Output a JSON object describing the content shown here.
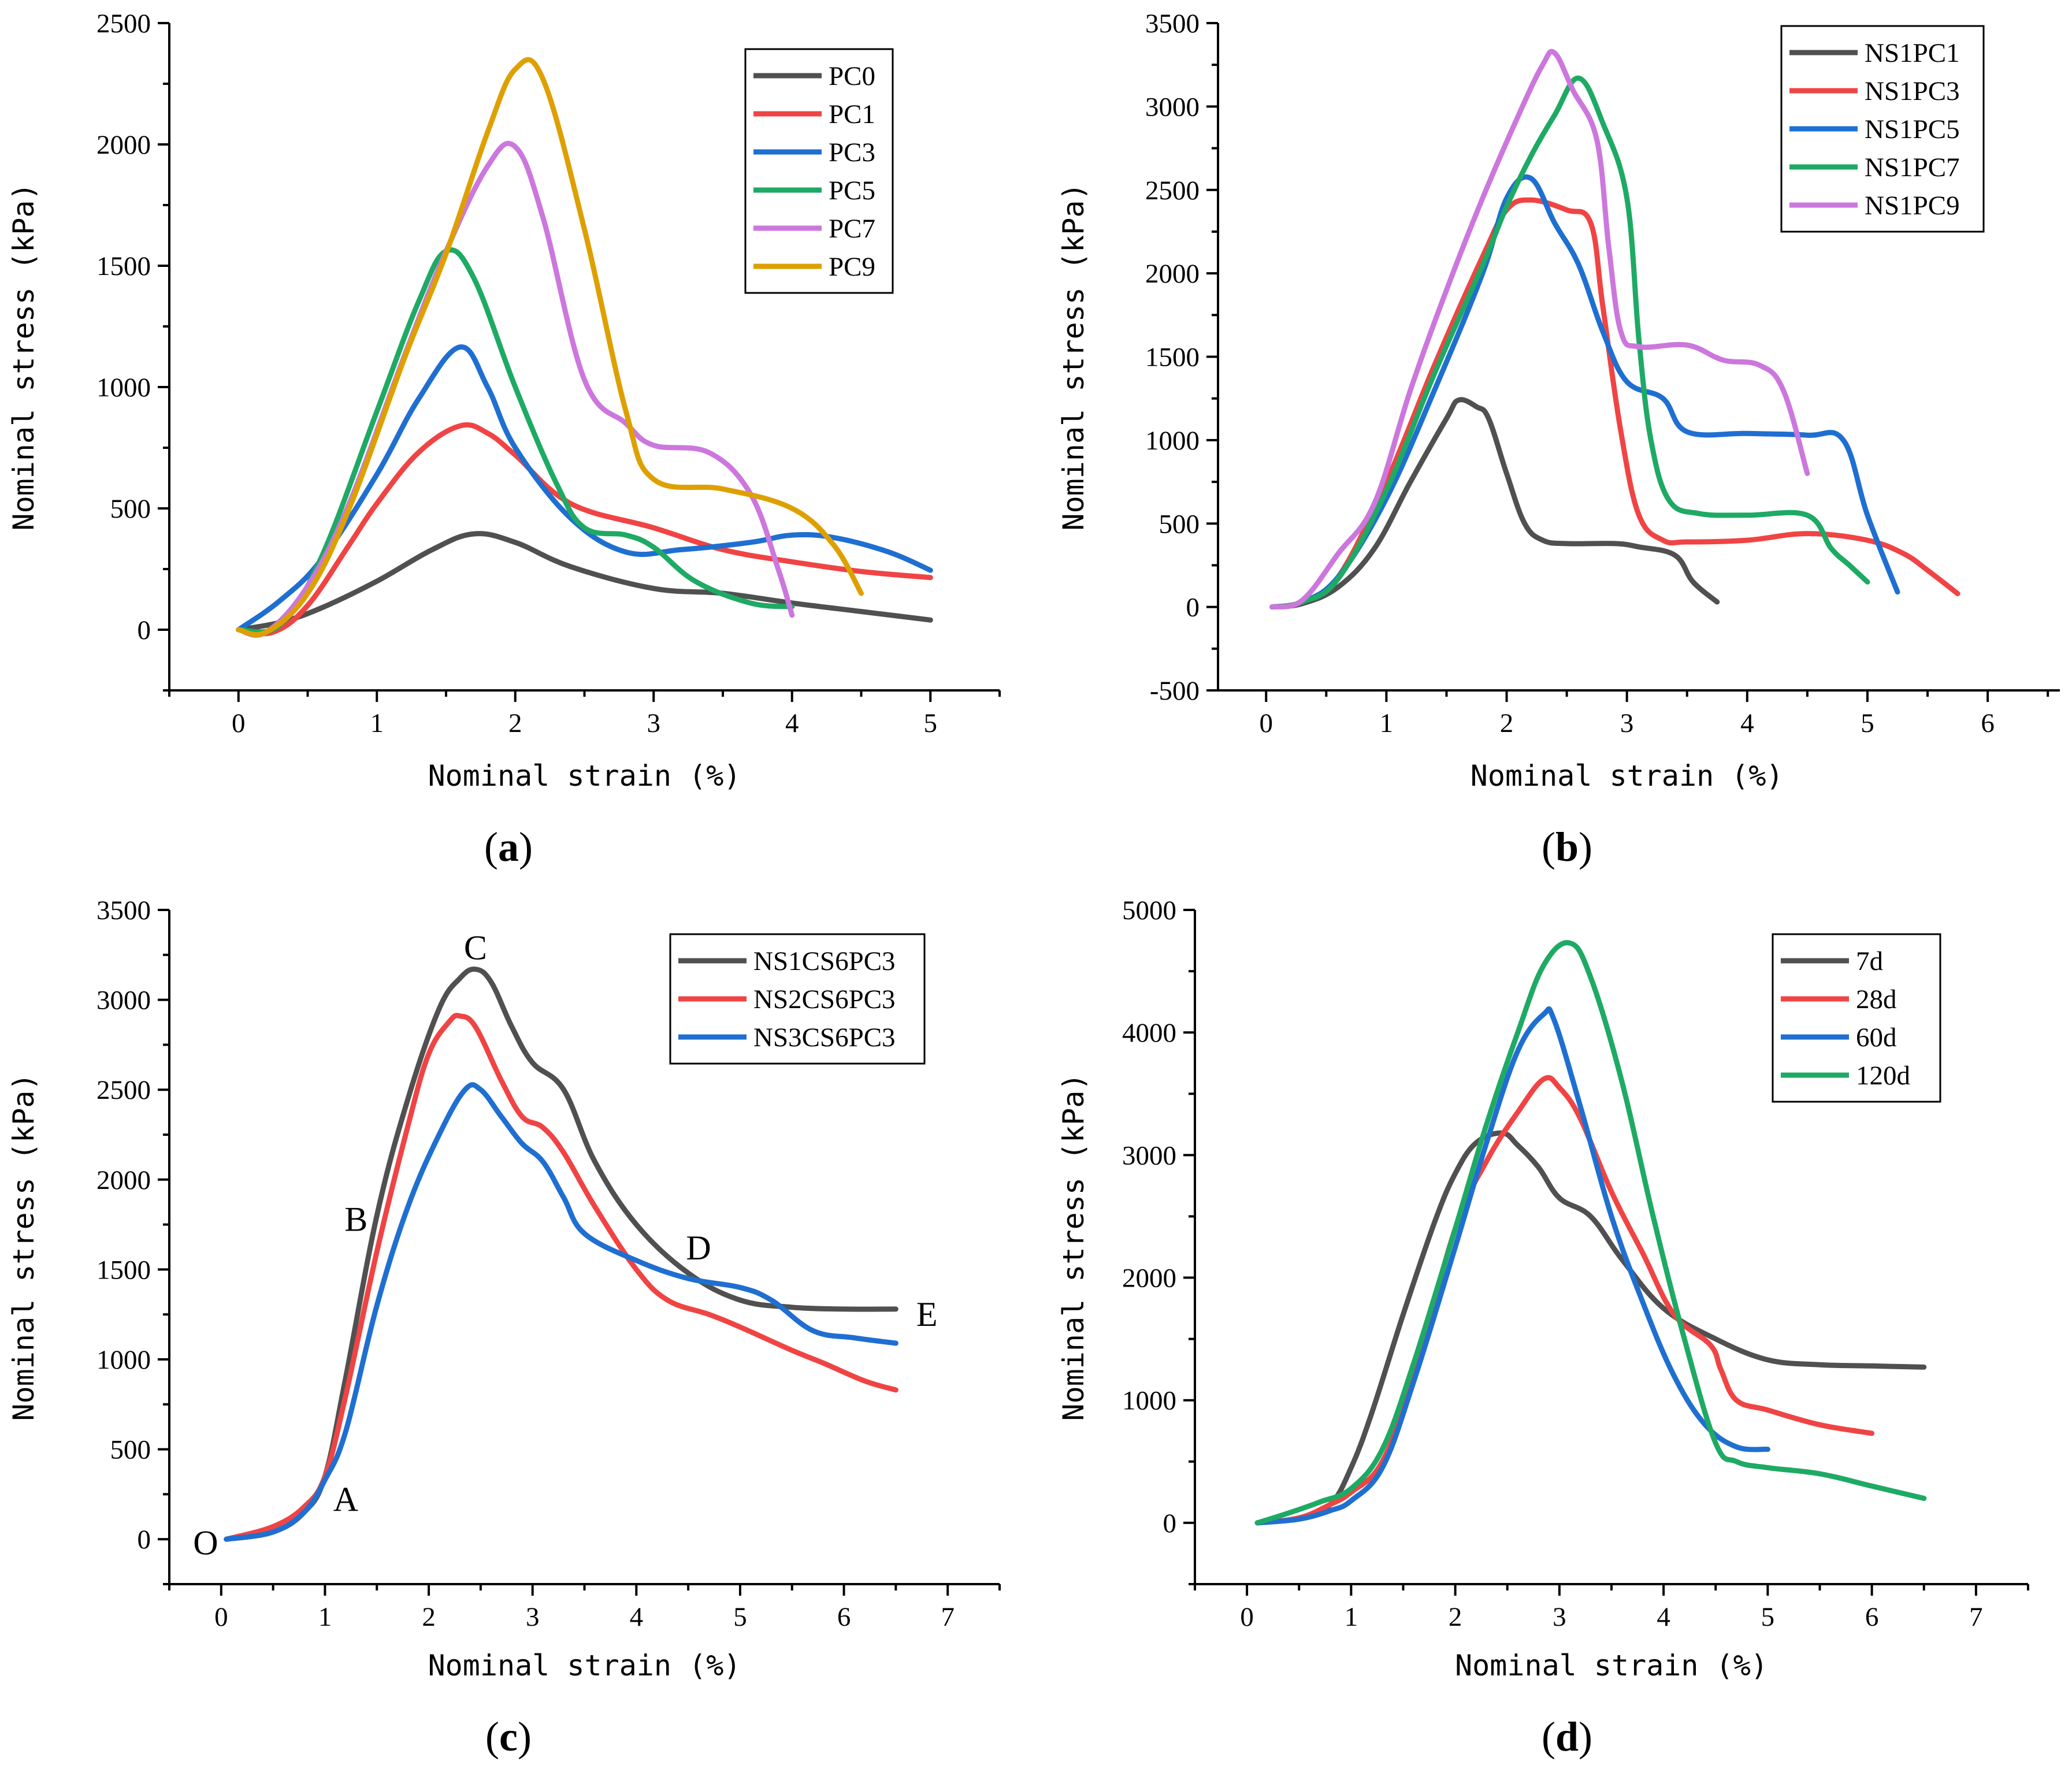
{
  "colors": {
    "gray": "#505050",
    "red": "#f04444",
    "blue": "#1f6fd1",
    "green": "#1eaa64",
    "purple": "#cc77dd",
    "gold": "#dea000"
  },
  "chart_data": [
    {
      "type": "line",
      "caption": "(a)",
      "caption_letter": "a",
      "xlabel": "Nominal strain (%)",
      "ylabel": "Nominal stress (kPa)",
      "xlim": [
        -0.5,
        5.5
      ],
      "ylim": [
        -250,
        2500
      ],
      "xticks": [
        0,
        1,
        2,
        3,
        4,
        5
      ],
      "yticks": [
        0,
        500,
        1000,
        1500,
        2000,
        2500
      ],
      "legend_position": "top-right",
      "series": [
        {
          "name": "PC0",
          "color": "#505050",
          "x": [
            0,
            0.3,
            0.6,
            1.0,
            1.4,
            1.7,
            2.0,
            2.4,
            3.0,
            3.5,
            4.0,
            4.5,
            5.0
          ],
          "y": [
            0,
            30,
            90,
            200,
            330,
            395,
            360,
            260,
            170,
            150,
            110,
            75,
            40
          ]
        },
        {
          "name": "PC1",
          "color": "#f04444",
          "x": [
            0,
            0.25,
            0.5,
            0.8,
            1.0,
            1.3,
            1.6,
            1.8,
            2.0,
            2.4,
            3.0,
            3.5,
            4.0,
            4.5,
            5.0
          ],
          "y": [
            0,
            -10,
            100,
            350,
            520,
            730,
            840,
            810,
            720,
            520,
            420,
            330,
            280,
            240,
            215
          ]
        },
        {
          "name": "PC3",
          "color": "#1f6fd1",
          "x": [
            0,
            0.3,
            0.6,
            1.0,
            1.3,
            1.6,
            1.8,
            2.0,
            2.4,
            2.8,
            3.2,
            3.7,
            4.0,
            4.3,
            4.7,
            5.0
          ],
          "y": [
            0,
            120,
            290,
            640,
            950,
            1165,
            1000,
            750,
            460,
            320,
            330,
            360,
            390,
            380,
            320,
            245
          ]
        },
        {
          "name": "PC5",
          "color": "#1eaa64",
          "x": [
            0,
            0.3,
            0.6,
            1.0,
            1.3,
            1.5,
            1.7,
            2.0,
            2.3,
            2.5,
            2.8,
            3.0,
            3.3,
            3.7,
            4.0
          ],
          "y": [
            0,
            20,
            300,
            900,
            1350,
            1560,
            1450,
            1000,
            600,
            420,
            390,
            340,
            200,
            110,
            95
          ]
        },
        {
          "name": "PC7",
          "color": "#cc77dd",
          "x": [
            0,
            0.2,
            0.5,
            0.8,
            1.2,
            1.5,
            1.8,
            2.0,
            2.2,
            2.5,
            2.8,
            3.0,
            3.4,
            3.7,
            3.9,
            4.0
          ],
          "y": [
            0,
            -10,
            180,
            520,
            1130,
            1560,
            1910,
            1990,
            1700,
            1030,
            850,
            760,
            730,
            560,
            250,
            60
          ]
        },
        {
          "name": "PC9",
          "color": "#dea000",
          "x": [
            0,
            0.2,
            0.5,
            0.8,
            1.2,
            1.5,
            1.8,
            2.0,
            2.2,
            2.5,
            2.8,
            3.0,
            3.5,
            4.0,
            4.3,
            4.5
          ],
          "y": [
            0,
            -10,
            150,
            500,
            1120,
            1550,
            2050,
            2310,
            2270,
            1650,
            900,
            620,
            580,
            500,
            350,
            150
          ]
        }
      ]
    },
    {
      "type": "line",
      "caption": "(b)",
      "caption_letter": "b",
      "xlabel": "Nominal strain (%)",
      "ylabel": "Nominal stress (kPa)",
      "xlim": [
        -0.4,
        6.6
      ],
      "ylim": [
        -500,
        3500
      ],
      "xticks": [
        0,
        1,
        2,
        3,
        4,
        5,
        6
      ],
      "yticks": [
        -500,
        0,
        500,
        1000,
        1500,
        2000,
        2500,
        3000,
        3500
      ],
      "legend_position": "top-right",
      "series": [
        {
          "name": "NS1PC1",
          "color": "#505050",
          "x": [
            0.05,
            0.3,
            0.6,
            0.9,
            1.2,
            1.5,
            1.6,
            1.75,
            1.85,
            2.0,
            2.15,
            2.3,
            2.5,
            2.9,
            3.1,
            3.4,
            3.55,
            3.75
          ],
          "y": [
            0,
            20,
            120,
            350,
            750,
            1130,
            1240,
            1200,
            1130,
            800,
            500,
            400,
            380,
            380,
            360,
            310,
            150,
            30
          ]
        },
        {
          "name": "NS1PC3",
          "color": "#f04444",
          "x": [
            0.05,
            0.3,
            0.6,
            1.0,
            1.4,
            1.8,
            2.0,
            2.2,
            2.5,
            2.7,
            2.8,
            2.95,
            3.1,
            3.3,
            3.5,
            4.0,
            4.5,
            5.0,
            5.3,
            5.5,
            5.75
          ],
          "y": [
            0,
            30,
            180,
            750,
            1450,
            2100,
            2380,
            2440,
            2380,
            2300,
            1800,
            1050,
            550,
            400,
            390,
            400,
            440,
            400,
            320,
            220,
            80
          ]
        },
        {
          "name": "NS1PC5",
          "color": "#1f6fd1",
          "x": [
            0.05,
            0.3,
            0.6,
            1.0,
            1.4,
            1.8,
            2.0,
            2.2,
            2.4,
            2.6,
            2.8,
            3.0,
            3.3,
            3.5,
            4.0,
            4.5,
            4.8,
            5.0,
            5.25
          ],
          "y": [
            0,
            30,
            180,
            650,
            1300,
            2000,
            2450,
            2570,
            2300,
            2050,
            1650,
            1350,
            1250,
            1050,
            1040,
            1030,
            1000,
            550,
            90
          ]
        },
        {
          "name": "NS1PC7",
          "color": "#1eaa64",
          "x": [
            0.05,
            0.3,
            0.6,
            1.0,
            1.4,
            1.8,
            2.0,
            2.2,
            2.4,
            2.6,
            2.8,
            3.0,
            3.1,
            3.2,
            3.35,
            3.6,
            4.0,
            4.5,
            4.7,
            4.85,
            5.0
          ],
          "y": [
            0,
            30,
            170,
            700,
            1400,
            2050,
            2400,
            2700,
            2950,
            3170,
            2900,
            2450,
            1600,
            1000,
            640,
            560,
            550,
            550,
            350,
            250,
            150
          ]
        },
        {
          "name": "NS1PC9",
          "color": "#cc77dd",
          "x": [
            0.05,
            0.3,
            0.6,
            0.9,
            1.2,
            1.5,
            1.8,
            2.1,
            2.3,
            2.4,
            2.55,
            2.75,
            2.85,
            2.95,
            3.1,
            3.5,
            3.8,
            4.1,
            4.3,
            4.5
          ],
          "y": [
            0,
            40,
            320,
            620,
            1300,
            1900,
            2450,
            2950,
            3250,
            3320,
            3100,
            2800,
            2150,
            1650,
            1560,
            1570,
            1480,
            1450,
            1300,
            800
          ]
        }
      ]
    },
    {
      "type": "line",
      "caption": "(c)",
      "caption_letter": "c",
      "xlabel": "Nominal strain (%)",
      "ylabel": "Nominal stress (kPa)",
      "xlim": [
        -0.5,
        7.5
      ],
      "ylim": [
        -250,
        3500
      ],
      "xticks": [
        0,
        1,
        2,
        3,
        4,
        5,
        6,
        7
      ],
      "yticks": [
        0,
        500,
        1000,
        1500,
        2000,
        2500,
        3000,
        3500
      ],
      "legend_position": "top-right",
      "annotations": [
        {
          "label": "O",
          "x": -0.15,
          "y": -20
        },
        {
          "label": "A",
          "x": 1.2,
          "y": 220
        },
        {
          "label": "B",
          "x": 1.3,
          "y": 1780
        },
        {
          "label": "C",
          "x": 2.45,
          "y": 3290
        },
        {
          "label": "D",
          "x": 4.6,
          "y": 1620
        },
        {
          "label": "E",
          "x": 6.8,
          "y": 1250
        }
      ],
      "series": [
        {
          "name": "NS1CS6PC3",
          "color": "#505050",
          "x": [
            0.05,
            0.5,
            0.8,
            1.0,
            1.2,
            1.5,
            1.8,
            2.1,
            2.3,
            2.45,
            2.6,
            2.8,
            3.0,
            3.3,
            3.6,
            4.0,
            4.5,
            5.0,
            5.5,
            6.0,
            6.5
          ],
          "y": [
            0,
            40,
            150,
            350,
            900,
            1800,
            2450,
            2950,
            3120,
            3170,
            3100,
            2850,
            2650,
            2500,
            2100,
            1750,
            1480,
            1330,
            1290,
            1280,
            1280
          ]
        },
        {
          "name": "NS2CS6PC3",
          "color": "#f04444",
          "x": [
            0.05,
            0.5,
            0.8,
            1.0,
            1.2,
            1.5,
            1.8,
            2.0,
            2.2,
            2.3,
            2.45,
            2.7,
            2.9,
            3.1,
            3.3,
            3.6,
            4.0,
            4.3,
            4.7,
            5.0,
            5.5,
            5.8,
            6.2,
            6.5
          ],
          "y": [
            0,
            70,
            180,
            350,
            800,
            1600,
            2300,
            2700,
            2880,
            2910,
            2850,
            2550,
            2350,
            2290,
            2150,
            1850,
            1500,
            1330,
            1250,
            1180,
            1050,
            980,
            880,
            830
          ]
        },
        {
          "name": "NS3CS6PC3",
          "color": "#1f6fd1",
          "x": [
            0.05,
            0.5,
            0.8,
            1.0,
            1.2,
            1.5,
            1.8,
            2.1,
            2.35,
            2.5,
            2.7,
            2.9,
            3.1,
            3.3,
            3.5,
            4.0,
            4.5,
            5.0,
            5.3,
            5.7,
            6.1,
            6.5
          ],
          "y": [
            0,
            40,
            150,
            330,
            600,
            1300,
            1850,
            2250,
            2500,
            2500,
            2350,
            2200,
            2100,
            1900,
            1700,
            1550,
            1450,
            1400,
            1330,
            1160,
            1120,
            1090
          ]
        }
      ]
    },
    {
      "type": "line",
      "caption": "(d)",
      "caption_letter": "d",
      "xlabel": "Nominal strain (%)",
      "ylabel": "Nominal stress (kPa)",
      "xlim": [
        -0.5,
        7.5
      ],
      "ylim": [
        -500,
        5000
      ],
      "xticks": [
        0,
        1,
        2,
        3,
        4,
        5,
        6,
        7
      ],
      "yticks": [
        0,
        1000,
        2000,
        3000,
        4000,
        5000
      ],
      "legend_position": "top-right",
      "series": [
        {
          "name": "7d",
          "color": "#505050",
          "x": [
            0.1,
            0.5,
            0.8,
            1.0,
            1.2,
            1.5,
            1.8,
            2.0,
            2.2,
            2.45,
            2.6,
            2.8,
            3.0,
            3.3,
            3.6,
            4.0,
            4.5,
            5.0,
            5.5,
            6.0,
            6.5
          ],
          "y": [
            0,
            40,
            150,
            450,
            900,
            1700,
            2450,
            2850,
            3100,
            3180,
            3080,
            2900,
            2650,
            2500,
            2150,
            1750,
            1500,
            1330,
            1290,
            1280,
            1270
          ]
        },
        {
          "name": "28d",
          "color": "#f04444",
          "x": [
            0.1,
            0.5,
            0.8,
            1.0,
            1.3,
            1.6,
            2.0,
            2.3,
            2.6,
            2.85,
            3.0,
            3.2,
            3.5,
            3.8,
            4.1,
            4.45,
            4.55,
            4.7,
            5.0,
            5.5,
            6.0
          ],
          "y": [
            0,
            40,
            150,
            250,
            500,
            1200,
            2400,
            2950,
            3350,
            3620,
            3550,
            3300,
            2700,
            2200,
            1700,
            1450,
            1250,
            1000,
            920,
            800,
            730
          ]
        },
        {
          "name": "60d",
          "color": "#1f6fd1",
          "x": [
            0.1,
            0.5,
            0.8,
            1.0,
            1.3,
            1.6,
            2.0,
            2.3,
            2.6,
            2.85,
            2.95,
            3.2,
            3.5,
            3.8,
            4.1,
            4.4,
            4.7,
            5.0
          ],
          "y": [
            0,
            30,
            100,
            180,
            450,
            1150,
            2250,
            3100,
            3850,
            4150,
            4100,
            3400,
            2500,
            1800,
            1200,
            800,
            620,
            600
          ]
        },
        {
          "name": "120d",
          "color": "#1eaa64",
          "x": [
            0.1,
            0.4,
            0.7,
            1.0,
            1.3,
            1.6,
            2.0,
            2.3,
            2.6,
            2.85,
            3.1,
            3.3,
            3.6,
            3.9,
            4.2,
            4.5,
            4.7,
            5.0,
            5.5,
            6.0,
            6.5
          ],
          "y": [
            0,
            80,
            170,
            280,
            600,
            1300,
            2400,
            3250,
            4000,
            4550,
            4730,
            4450,
            3600,
            2500,
            1500,
            650,
            500,
            450,
            400,
            300,
            200
          ]
        }
      ]
    }
  ]
}
